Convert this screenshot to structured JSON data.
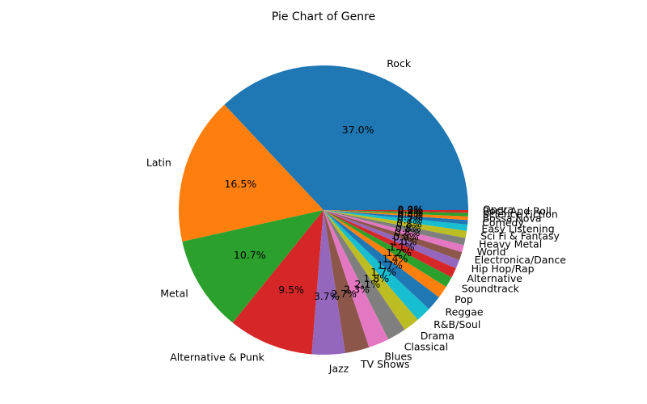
{
  "chart_data": {
    "type": "pie",
    "title": "Pie Chart of Genre",
    "start_angle_deg": 0,
    "direction": "counterclockwise",
    "slices": [
      {
        "label": "Rock",
        "value": 37.0,
        "pct_label": "37.0%",
        "color": "#1f77b4"
      },
      {
        "label": "Latin",
        "value": 16.5,
        "pct_label": "16.5%",
        "color": "#ff7f0e"
      },
      {
        "label": "Metal",
        "value": 10.7,
        "pct_label": "10.7%",
        "color": "#2ca02c"
      },
      {
        "label": "Alternative & Punk",
        "value": 9.5,
        "pct_label": "9.5%",
        "color": "#d62728"
      },
      {
        "label": "Jazz",
        "value": 3.7,
        "pct_label": "3.7%",
        "color": "#9467bd"
      },
      {
        "label": "TV Shows",
        "value": 2.7,
        "pct_label": "2.7%",
        "color": "#8c564b"
      },
      {
        "label": "Blues",
        "value": 2.3,
        "pct_label": "2.3%",
        "color": "#e377c2"
      },
      {
        "label": "Classical",
        "value": 2.1,
        "pct_label": "2.1%",
        "color": "#7f7f7f"
      },
      {
        "label": "Drama",
        "value": 1.8,
        "pct_label": "1.8%",
        "color": "#bcbd22"
      },
      {
        "label": "R&B/Soul",
        "value": 1.7,
        "pct_label": "1.7%",
        "color": "#17becf"
      },
      {
        "label": "Reggae",
        "value": 1.7,
        "pct_label": "1.7%",
        "color": "#1f77b4"
      },
      {
        "label": "Pop",
        "value": 1.4,
        "pct_label": "1.4%",
        "color": "#ff7f0e"
      },
      {
        "label": "Soundtrack",
        "value": 1.2,
        "pct_label": "1.2%",
        "color": "#2ca02c"
      },
      {
        "label": "Alternative",
        "value": 1.1,
        "pct_label": "1.1%",
        "color": "#d62728"
      },
      {
        "label": "Hip Hop/Rap",
        "value": 1.0,
        "pct_label": "1.0%",
        "color": "#9467bd"
      },
      {
        "label": "Electronica/Dance",
        "value": 0.9,
        "pct_label": "0.9%",
        "color": "#8c564b"
      },
      {
        "label": "World",
        "value": 0.8,
        "pct_label": "0.8%",
        "color": "#e377c2"
      },
      {
        "label": "Heavy Metal",
        "value": 0.8,
        "pct_label": "0.8%",
        "color": "#7f7f7f"
      },
      {
        "label": "Sci Fi & Fantasy",
        "value": 0.8,
        "pct_label": "0.8%",
        "color": "#bcbd22"
      },
      {
        "label": "Easy Listening",
        "value": 0.7,
        "pct_label": "0.7%",
        "color": "#17becf"
      },
      {
        "label": "Comedy",
        "value": 0.5,
        "pct_label": "0.5%",
        "color": "#1f77b4"
      },
      {
        "label": "Bossa Nova",
        "value": 0.4,
        "pct_label": "0.4%",
        "color": "#ff7f0e"
      },
      {
        "label": "Science Fiction",
        "value": 0.4,
        "pct_label": "0.4%",
        "color": "#2ca02c"
      },
      {
        "label": "Rock And Roll",
        "value": 0.3,
        "pct_label": "0.3%",
        "color": "#d62728"
      },
      {
        "label": "Opera",
        "value": 0.0,
        "pct_label": "0.0%",
        "color": "#9467bd"
      }
    ]
  }
}
